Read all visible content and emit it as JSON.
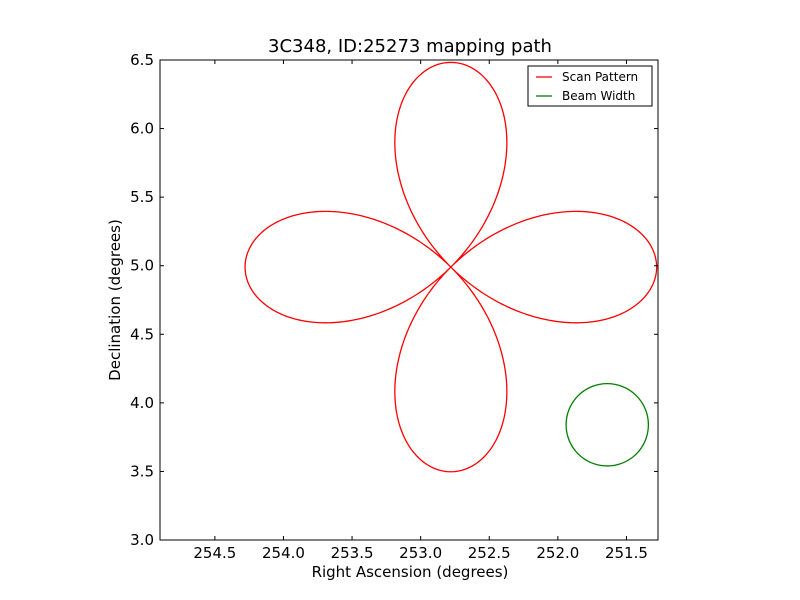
{
  "chart_data": {
    "type": "line",
    "title": "3C348, ID:25273 mapping path",
    "xlabel": "Right Ascension (degrees)",
    "ylabel": "Declination (degrees)",
    "xlim": [
      254.9,
      251.27
    ],
    "ylim": [
      3.0,
      6.5
    ],
    "x_inverted": true,
    "xticks": [
      254.5,
      254.0,
      253.5,
      253.0,
      252.5,
      252.0,
      251.5
    ],
    "xtick_labels": [
      "254.5",
      "254.0",
      "253.5",
      "253.0",
      "252.5",
      "252.0",
      "251.5"
    ],
    "yticks": [
      3.0,
      3.5,
      4.0,
      4.5,
      5.0,
      5.5,
      6.0,
      6.5
    ],
    "ytick_labels": [
      "3.0",
      "3.5",
      "4.0",
      "4.5",
      "5.0",
      "5.5",
      "6.0",
      "6.5"
    ],
    "grid": false,
    "legend_position": "top-right",
    "series": [
      {
        "name": "Scan Pattern",
        "color": "#ff0000",
        "kind": "four-lobed rose",
        "center": [
          252.78,
          4.99
        ],
        "lobe_length_deg": 1.5,
        "start": [
          254.28,
          4.99
        ]
      },
      {
        "name": "Beam Width",
        "color": "#008000",
        "kind": "circle",
        "center": [
          251.64,
          3.84
        ],
        "radius_deg": 0.3
      }
    ]
  }
}
